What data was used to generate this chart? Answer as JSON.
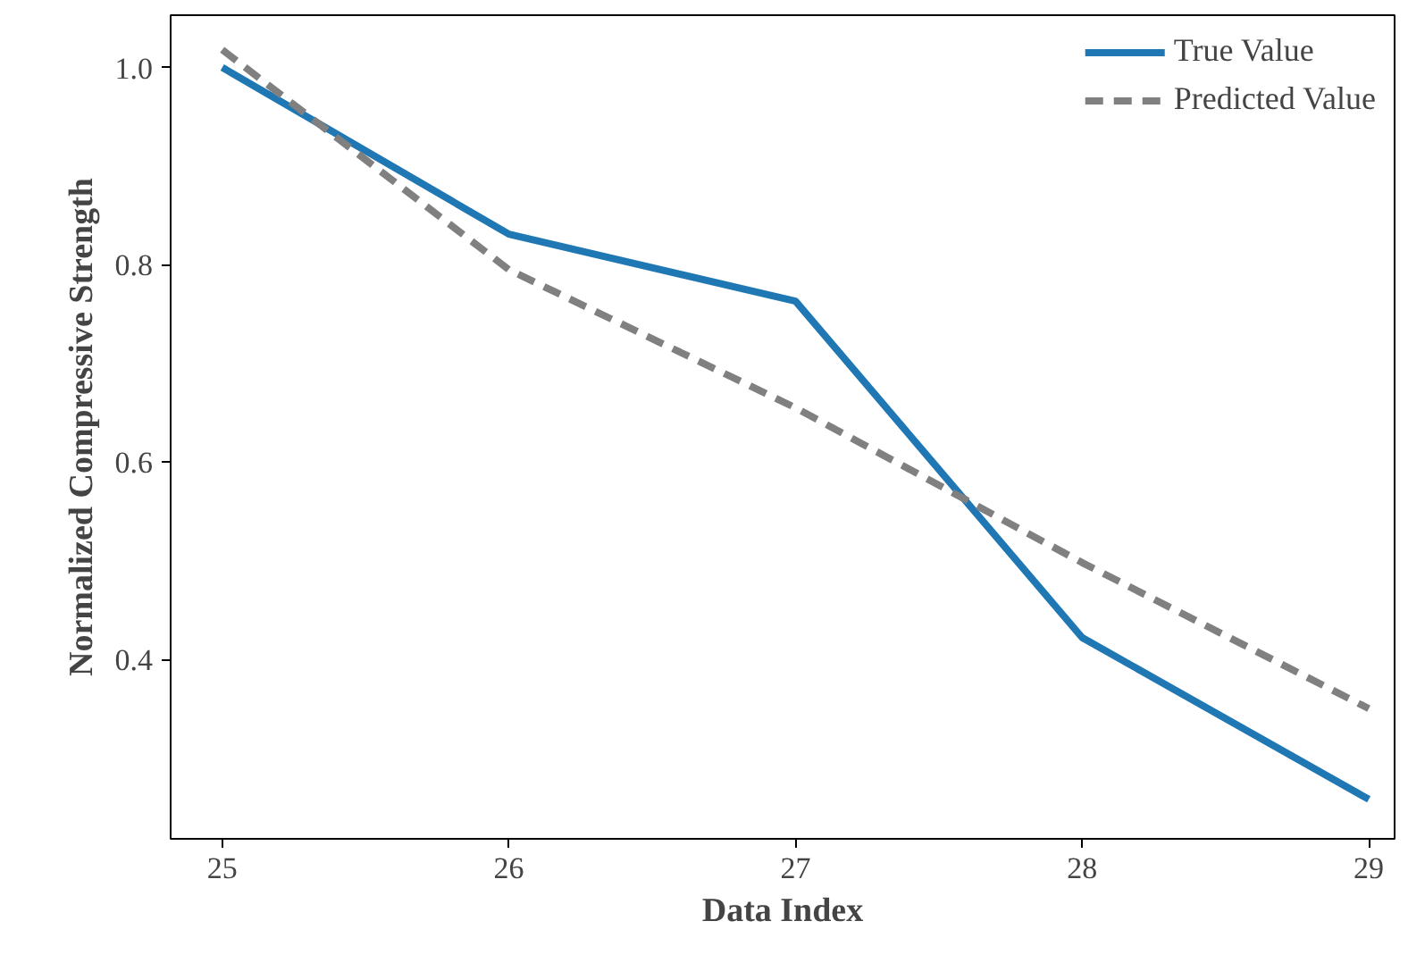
{
  "chart_data": {
    "type": "line",
    "xlabel": "Data Index",
    "ylabel": "Normalized Compressive Strength",
    "x": [
      25,
      26,
      27,
      28,
      29
    ],
    "series": [
      {
        "name": "True Value",
        "color": "#1f77b4",
        "values": [
          1.0,
          0.831,
          0.763,
          0.422,
          0.258
        ],
        "line_style": "solid"
      },
      {
        "name": "Predicted Value",
        "color": "#808080",
        "values": [
          1.018,
          0.795,
          0.655,
          0.498,
          0.35
        ],
        "line_style": "dashed"
      }
    ],
    "xlim": [
      24.82,
      29.09
    ],
    "ylim": [
      0.218,
      1.053
    ],
    "xticks": [
      25,
      26,
      27,
      28,
      29
    ],
    "yticks": [
      0.4,
      0.6,
      0.8,
      {
        "value": 1,
        "label": "1.0"
      }
    ],
    "grid": false,
    "legend": "top right",
    "marker": "none"
  }
}
